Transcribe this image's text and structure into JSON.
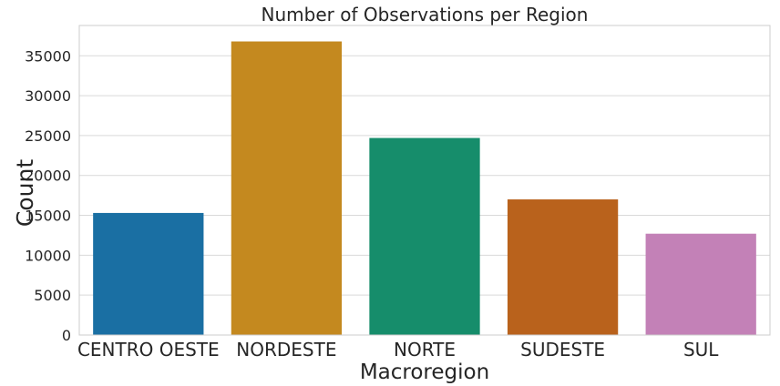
{
  "chart_data": {
    "type": "bar",
    "title": "Number of Observations per Region",
    "xlabel": "Macroregion",
    "ylabel": "Count",
    "categories": [
      "CENTRO OESTE",
      "NORDESTE",
      "NORTE",
      "SUDESTE",
      "SUL"
    ],
    "values": [
      15300,
      36800,
      24700,
      17000,
      12700
    ],
    "colors": [
      "#1a6fa3",
      "#c4891f",
      "#168d6b",
      "#b9621c",
      "#c381b7"
    ],
    "ylim": [
      0,
      38800
    ],
    "yticks": [
      0,
      5000,
      10000,
      15000,
      20000,
      25000,
      30000,
      35000
    ],
    "grid": "horizontal"
  }
}
